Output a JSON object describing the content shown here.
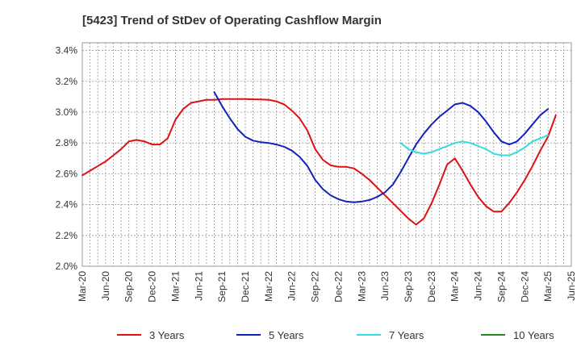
{
  "chart_data": {
    "type": "line",
    "title": "[5423]  Trend of StDev of Operating Cashflow Margin",
    "xlabel": "",
    "ylabel": "",
    "x_ticks": [
      "Mar-20",
      "Jun-20",
      "Sep-20",
      "Dec-20",
      "Mar-21",
      "Jun-21",
      "Sep-21",
      "Dec-21",
      "Mar-22",
      "Jun-22",
      "Sep-22",
      "Dec-22",
      "Mar-23",
      "Jun-23",
      "Sep-23",
      "Dec-23",
      "Mar-24",
      "Jun-24",
      "Sep-24",
      "Dec-24",
      "Mar-25",
      "Jun-25"
    ],
    "y_ticks": [
      2.0,
      2.2,
      2.4,
      2.6,
      2.8,
      3.0,
      3.2,
      3.4
    ],
    "y_tick_labels": [
      "2.0%",
      "2.2%",
      "2.4%",
      "2.6%",
      "2.8%",
      "3.0%",
      "3.2%",
      "3.4%"
    ],
    "ylim": [
      2.0,
      3.45
    ],
    "grid": true,
    "legend_position": "bottom",
    "series": [
      {
        "name": "3 Years",
        "color": "#dd1111",
        "points": [
          [
            "Mar-20",
            2.59
          ],
          [
            "Apr-20",
            2.62
          ],
          [
            "May-20",
            2.65
          ],
          [
            "Jun-20",
            2.68
          ],
          [
            "Jul-20",
            2.72
          ],
          [
            "Aug-20",
            2.76
          ],
          [
            "Sep-20",
            2.81
          ],
          [
            "Oct-20",
            2.82
          ],
          [
            "Nov-20",
            2.81
          ],
          [
            "Dec-20",
            2.79
          ],
          [
            "Jan-21",
            2.79
          ],
          [
            "Feb-21",
            2.83
          ],
          [
            "Mar-21",
            2.95
          ],
          [
            "Apr-21",
            3.02
          ],
          [
            "May-21",
            3.06
          ],
          [
            "Jun-21",
            3.07
          ],
          [
            "Jul-21",
            3.08
          ],
          [
            "Aug-21",
            3.08
          ],
          [
            "Sep-21",
            3.085
          ],
          [
            "Oct-21",
            3.085
          ],
          [
            "Nov-21",
            3.085
          ],
          [
            "Dec-21",
            3.085
          ],
          [
            "Jan-22",
            3.083
          ],
          [
            "Feb-22",
            3.082
          ],
          [
            "Mar-22",
            3.08
          ],
          [
            "Apr-22",
            3.07
          ],
          [
            "May-22",
            3.05
          ],
          [
            "Jun-22",
            3.01
          ],
          [
            "Jul-22",
            2.96
          ],
          [
            "Aug-22",
            2.88
          ],
          [
            "Sep-22",
            2.76
          ],
          [
            "Oct-22",
            2.69
          ],
          [
            "Nov-22",
            2.655
          ],
          [
            "Dec-22",
            2.645
          ],
          [
            "Jan-23",
            2.645
          ],
          [
            "Feb-23",
            2.635
          ],
          [
            "Mar-23",
            2.6
          ],
          [
            "Apr-23",
            2.56
          ],
          [
            "May-23",
            2.51
          ],
          [
            "Jun-23",
            2.46
          ],
          [
            "Jul-23",
            2.41
          ],
          [
            "Aug-23",
            2.36
          ],
          [
            "Sep-23",
            2.31
          ],
          [
            "Oct-23",
            2.27
          ],
          [
            "Nov-23",
            2.31
          ],
          [
            "Dec-23",
            2.41
          ],
          [
            "Jan-24",
            2.53
          ],
          [
            "Feb-24",
            2.66
          ],
          [
            "Mar-24",
            2.7
          ],
          [
            "Apr-24",
            2.62
          ],
          [
            "May-24",
            2.53
          ],
          [
            "Jun-24",
            2.45
          ],
          [
            "Jul-24",
            2.39
          ],
          [
            "Aug-24",
            2.355
          ],
          [
            "Sep-24",
            2.355
          ],
          [
            "Oct-24",
            2.41
          ],
          [
            "Nov-24",
            2.48
          ],
          [
            "Dec-24",
            2.56
          ],
          [
            "Jan-25",
            2.65
          ],
          [
            "Feb-25",
            2.75
          ],
          [
            "Mar-25",
            2.84
          ],
          [
            "Apr-25",
            2.98
          ]
        ]
      },
      {
        "name": "5 Years",
        "color": "#1122bb",
        "points": [
          [
            "Aug-21",
            3.13
          ],
          [
            "Sep-21",
            3.04
          ],
          [
            "Oct-21",
            2.96
          ],
          [
            "Nov-21",
            2.89
          ],
          [
            "Dec-21",
            2.84
          ],
          [
            "Jan-22",
            2.815
          ],
          [
            "Feb-22",
            2.805
          ],
          [
            "Mar-22",
            2.8
          ],
          [
            "Apr-22",
            2.79
          ],
          [
            "May-22",
            2.775
          ],
          [
            "Jun-22",
            2.75
          ],
          [
            "Jul-22",
            2.71
          ],
          [
            "Aug-22",
            2.65
          ],
          [
            "Sep-22",
            2.56
          ],
          [
            "Oct-22",
            2.5
          ],
          [
            "Nov-22",
            2.46
          ],
          [
            "Dec-22",
            2.435
          ],
          [
            "Jan-23",
            2.42
          ],
          [
            "Feb-23",
            2.415
          ],
          [
            "Mar-23",
            2.42
          ],
          [
            "Apr-23",
            2.43
          ],
          [
            "May-23",
            2.45
          ],
          [
            "Jun-23",
            2.48
          ],
          [
            "Jul-23",
            2.53
          ],
          [
            "Aug-23",
            2.61
          ],
          [
            "Sep-23",
            2.7
          ],
          [
            "Oct-23",
            2.79
          ],
          [
            "Nov-23",
            2.86
          ],
          [
            "Dec-23",
            2.92
          ],
          [
            "Jan-24",
            2.97
          ],
          [
            "Feb-24",
            3.01
          ],
          [
            "Mar-24",
            3.05
          ],
          [
            "Apr-24",
            3.06
          ],
          [
            "May-24",
            3.04
          ],
          [
            "Jun-24",
            3.0
          ],
          [
            "Jul-24",
            2.94
          ],
          [
            "Aug-24",
            2.87
          ],
          [
            "Sep-24",
            2.81
          ],
          [
            "Oct-24",
            2.79
          ],
          [
            "Nov-24",
            2.81
          ],
          [
            "Dec-24",
            2.86
          ],
          [
            "Jan-25",
            2.92
          ],
          [
            "Feb-25",
            2.98
          ],
          [
            "Mar-25",
            3.02
          ]
        ]
      },
      {
        "name": "7 Years",
        "color": "#33dddd",
        "points": [
          [
            "Aug-23",
            2.8
          ],
          [
            "Sep-23",
            2.76
          ],
          [
            "Oct-23",
            2.74
          ],
          [
            "Nov-23",
            2.73
          ],
          [
            "Dec-23",
            2.74
          ],
          [
            "Jan-24",
            2.76
          ],
          [
            "Feb-24",
            2.78
          ],
          [
            "Mar-24",
            2.8
          ],
          [
            "Apr-24",
            2.81
          ],
          [
            "May-24",
            2.8
          ],
          [
            "Jun-24",
            2.78
          ],
          [
            "Jul-24",
            2.76
          ],
          [
            "Aug-24",
            2.73
          ],
          [
            "Sep-24",
            2.72
          ],
          [
            "Oct-24",
            2.72
          ],
          [
            "Nov-24",
            2.74
          ],
          [
            "Dec-24",
            2.77
          ],
          [
            "Jan-25",
            2.81
          ],
          [
            "Feb-25",
            2.83
          ],
          [
            "Mar-25",
            2.85
          ]
        ]
      },
      {
        "name": "10 Years",
        "color": "#228822",
        "points": []
      }
    ]
  }
}
